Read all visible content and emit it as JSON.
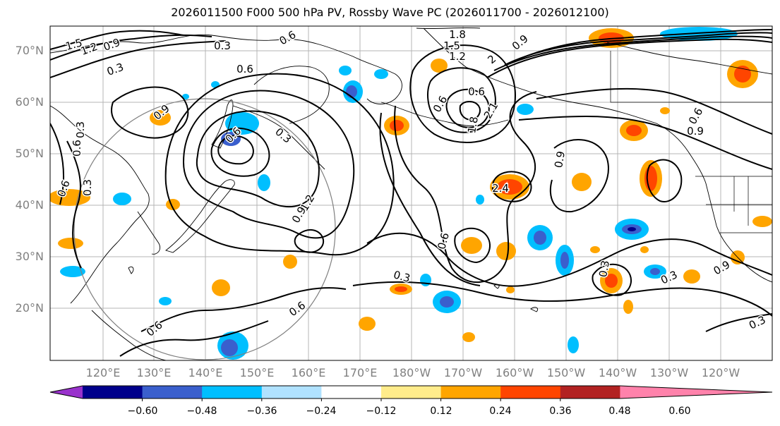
{
  "title": "2026011500 F000 500 hPa PV, Rossby Wave PC (2026011700 - 2026012100)",
  "lat_labels": [
    "70°N",
    "60°N",
    "50°N",
    "40°N",
    "30°N",
    "20°N"
  ],
  "lon_labels": [
    "120°E",
    "130°E",
    "140°E",
    "150°E",
    "160°E",
    "170°E",
    "180°W",
    "170°W",
    "160°W",
    "150°W",
    "140°W",
    "130°W",
    "120°W"
  ],
  "colorbar": {
    "colors": [
      "#9932CC",
      "#00008B",
      "#3A5FCD",
      "#00BFFF",
      "#B0E2FF",
      "#FFFFFF",
      "#FFEC8B",
      "#FFA500",
      "#FF4500",
      "#B22222",
      "#FF82AB"
    ],
    "ticks": [
      "−0.60",
      "−0.48",
      "−0.36",
      "−0.24",
      "−0.12",
      "0.12",
      "0.24",
      "0.36",
      "0.48",
      "0.60"
    ]
  },
  "contour_labels": [
    "1.5",
    "1.2",
    "0.9",
    "0.3",
    "0.6",
    "0.6",
    "1.8",
    "1.5",
    "1.2",
    "0.9",
    "2",
    "0.3",
    "0.6",
    "0.3",
    "1.2",
    "0.9",
    "0.6",
    "0.6",
    "0.6",
    "1.8",
    "2.1",
    "2.4",
    "0.9",
    "0.6",
    "0.9",
    "0.3",
    "0.6",
    "0.3",
    "0.9",
    "0.3",
    "0.6",
    "0.3",
    "0.3",
    "0.6",
    "0.3",
    "0.9",
    "0.6"
  ]
}
